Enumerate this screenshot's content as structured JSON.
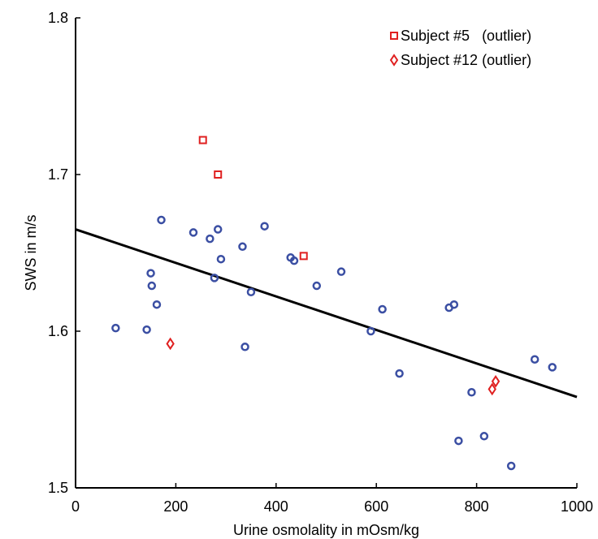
{
  "chart_data": {
    "type": "scatter",
    "xlabel": "Urine osmolality in mOsm/kg",
    "ylabel": "SWS in m/s",
    "xlim": [
      0,
      1000
    ],
    "ylim": [
      1.5,
      1.8
    ],
    "xticks": [
      0,
      200,
      400,
      600,
      800,
      1000
    ],
    "yticks": [
      1.5,
      1.6,
      1.7,
      1.8
    ],
    "xtick_labels": [
      "0",
      "200",
      "400",
      "600",
      "800",
      "1000"
    ],
    "ytick_labels": [
      "1.5",
      "1.6",
      "1.7",
      "1.8"
    ],
    "legend_position": "top-right",
    "grid": false,
    "series": [
      {
        "marker": "circle",
        "color": "#3b4fa3",
        "points": [
          [
            80,
            1.602
          ],
          [
            142,
            1.601
          ],
          [
            150,
            1.637
          ],
          [
            152,
            1.629
          ],
          [
            162,
            1.617
          ],
          [
            171,
            1.671
          ],
          [
            235,
            1.663
          ],
          [
            268,
            1.659
          ],
          [
            277,
            1.634
          ],
          [
            284,
            1.665
          ],
          [
            290,
            1.646
          ],
          [
            333,
            1.654
          ],
          [
            338,
            1.59
          ],
          [
            350,
            1.625
          ],
          [
            377,
            1.667
          ],
          [
            429,
            1.647
          ],
          [
            436,
            1.645
          ],
          [
            481,
            1.629
          ],
          [
            530,
            1.638
          ],
          [
            589,
            1.6
          ],
          [
            612,
            1.614
          ],
          [
            646,
            1.573
          ],
          [
            745,
            1.615
          ],
          [
            755,
            1.617
          ],
          [
            764,
            1.53
          ],
          [
            790,
            1.561
          ],
          [
            815,
            1.533
          ],
          [
            869,
            1.514
          ],
          [
            916,
            1.582
          ],
          [
            951,
            1.577
          ]
        ]
      },
      {
        "name": "Subject #5   (outlier)",
        "marker": "square",
        "color": "#e02020",
        "points": [
          [
            254,
            1.722
          ],
          [
            284,
            1.7
          ],
          [
            455,
            1.648
          ]
        ]
      },
      {
        "name": "Subject #12 (outlier)",
        "marker": "diamond",
        "color": "#e02020",
        "points": [
          [
            189,
            1.592
          ],
          [
            831,
            1.563
          ],
          [
            838,
            1.568
          ]
        ]
      }
    ],
    "regression_line": {
      "x": [
        0,
        1000
      ],
      "y": [
        1.665,
        1.558
      ],
      "color": "#000000"
    }
  }
}
